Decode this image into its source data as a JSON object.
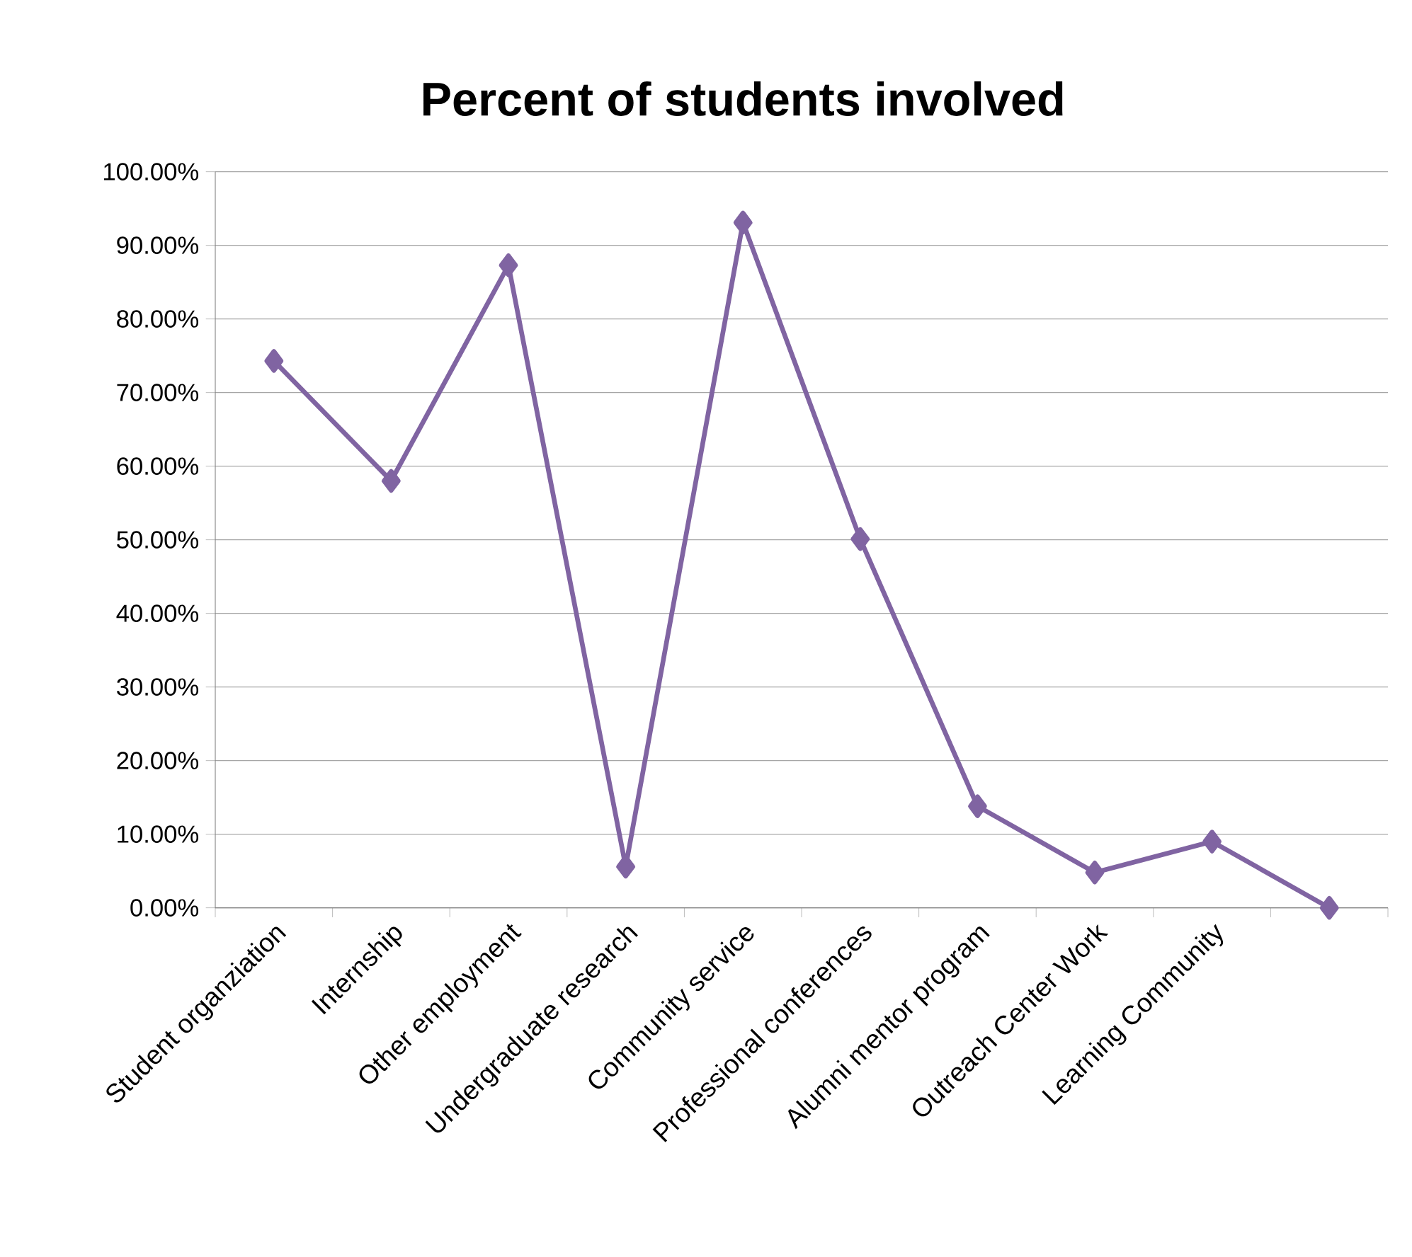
{
  "chart_data": {
    "type": "line",
    "title": "Percent of students involved",
    "categories": [
      "Student organziation",
      "Internship",
      "Other employment",
      "Undergraduate research",
      "Community service",
      "Professional conferences",
      "Alumni mentor program",
      "Outreach Center Work",
      "Learning Community",
      null
    ],
    "series": [
      {
        "color": "#8064a2",
        "values": [
          74.3,
          58.0,
          87.3,
          5.6,
          93.1,
          50.1,
          13.8,
          4.8,
          9.0,
          0
        ]
      }
    ],
    "ylim": [
      0,
      100
    ],
    "yticks": [
      {
        "value": 0,
        "label": "0.00%"
      },
      {
        "value": 10,
        "label": "10.00%"
      },
      {
        "value": 20,
        "label": "20.00%"
      },
      {
        "value": 30,
        "label": "30.00%"
      },
      {
        "value": 40,
        "label": "40.00%"
      },
      {
        "value": 50,
        "label": "50.00%"
      },
      {
        "value": 60,
        "label": "60.00%"
      },
      {
        "value": 70,
        "label": "70.00%"
      },
      {
        "value": 80,
        "label": "80.00%"
      },
      {
        "value": 90,
        "label": "90.00%"
      },
      {
        "value": 100,
        "label": "100.00%"
      }
    ],
    "grid": "y",
    "marker": "diamond",
    "line_style": "solid"
  }
}
